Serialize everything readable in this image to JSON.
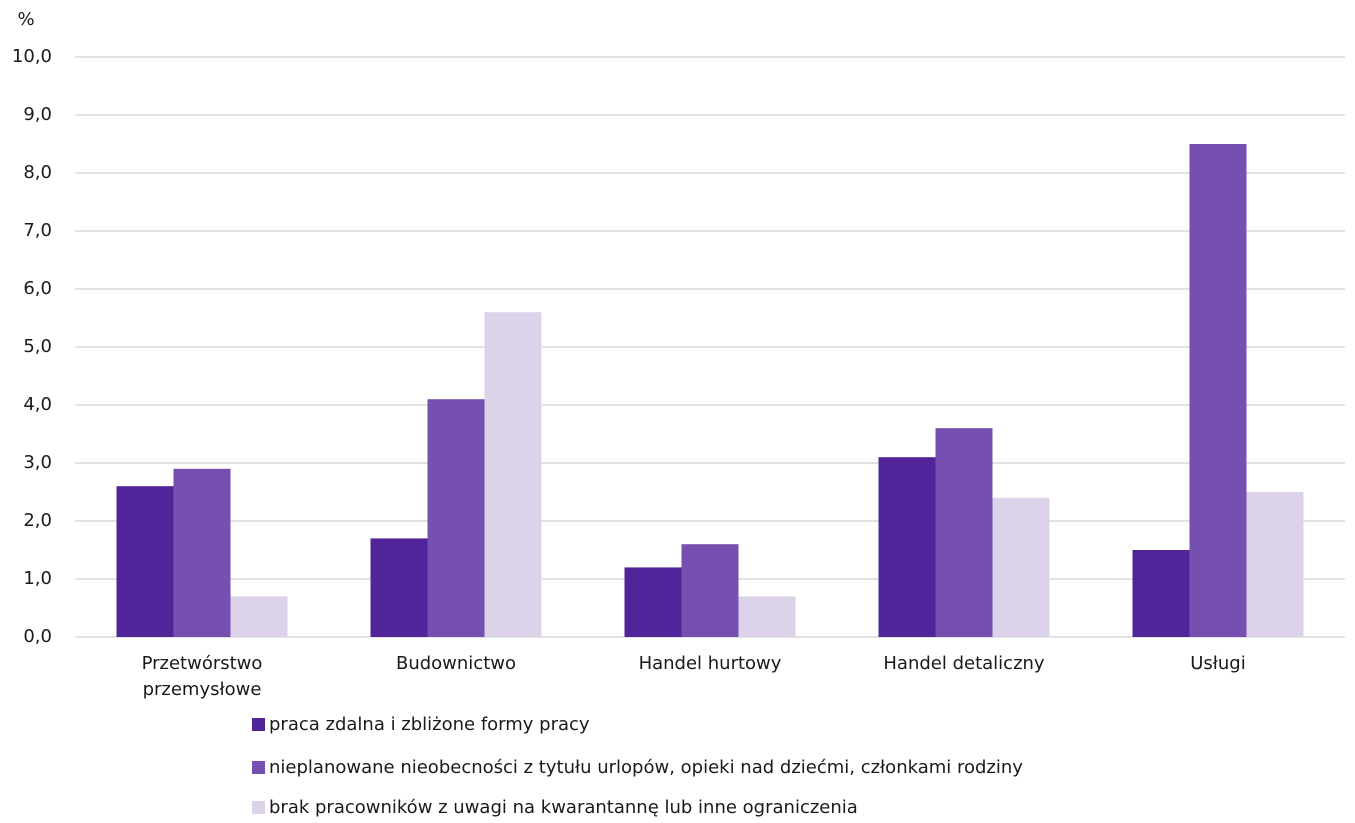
{
  "chart_data": {
    "type": "bar",
    "y_axis_label": "%",
    "categories": [
      "Przetwórstwo przemysłowe",
      "Budownictwo",
      "Handel hurtowy",
      "Handel detaliczny",
      "Usługi"
    ],
    "series": [
      {
        "name": "praca zdalna i zbliżone formy pracy",
        "color": "#52249a",
        "values": [
          2.6,
          1.7,
          1.2,
          3.1,
          1.5
        ]
      },
      {
        "name": "nieplanowane nieobecności z tytułu urlopów, opieki nad dziećmi, członkami rodziny",
        "color": "#7550b0",
        "values": [
          2.9,
          4.1,
          1.6,
          3.6,
          8.5
        ]
      },
      {
        "name": "brak pracowników z uwagi na kwarantannę lub inne ograniczenia",
        "color": "#dcd3ea",
        "values": [
          0.7,
          5.6,
          0.7,
          2.4,
          2.5
        ]
      }
    ],
    "ylim": [
      0,
      10
    ],
    "yticks": [
      {
        "value": 0,
        "label": "0,0"
      },
      {
        "value": 1,
        "label": "1,0"
      },
      {
        "value": 2,
        "label": "2,0"
      },
      {
        "value": 3,
        "label": "3,0"
      },
      {
        "value": 4,
        "label": "4,0"
      },
      {
        "value": 5,
        "label": "5,0"
      },
      {
        "value": 6,
        "label": "6,0"
      },
      {
        "value": 7,
        "label": "7,0"
      },
      {
        "value": 8,
        "label": "8,0"
      },
      {
        "value": 9,
        "label": "9,0"
      },
      {
        "value": 10,
        "label": "10,0"
      }
    ],
    "grid": true,
    "legend": "bottom"
  }
}
